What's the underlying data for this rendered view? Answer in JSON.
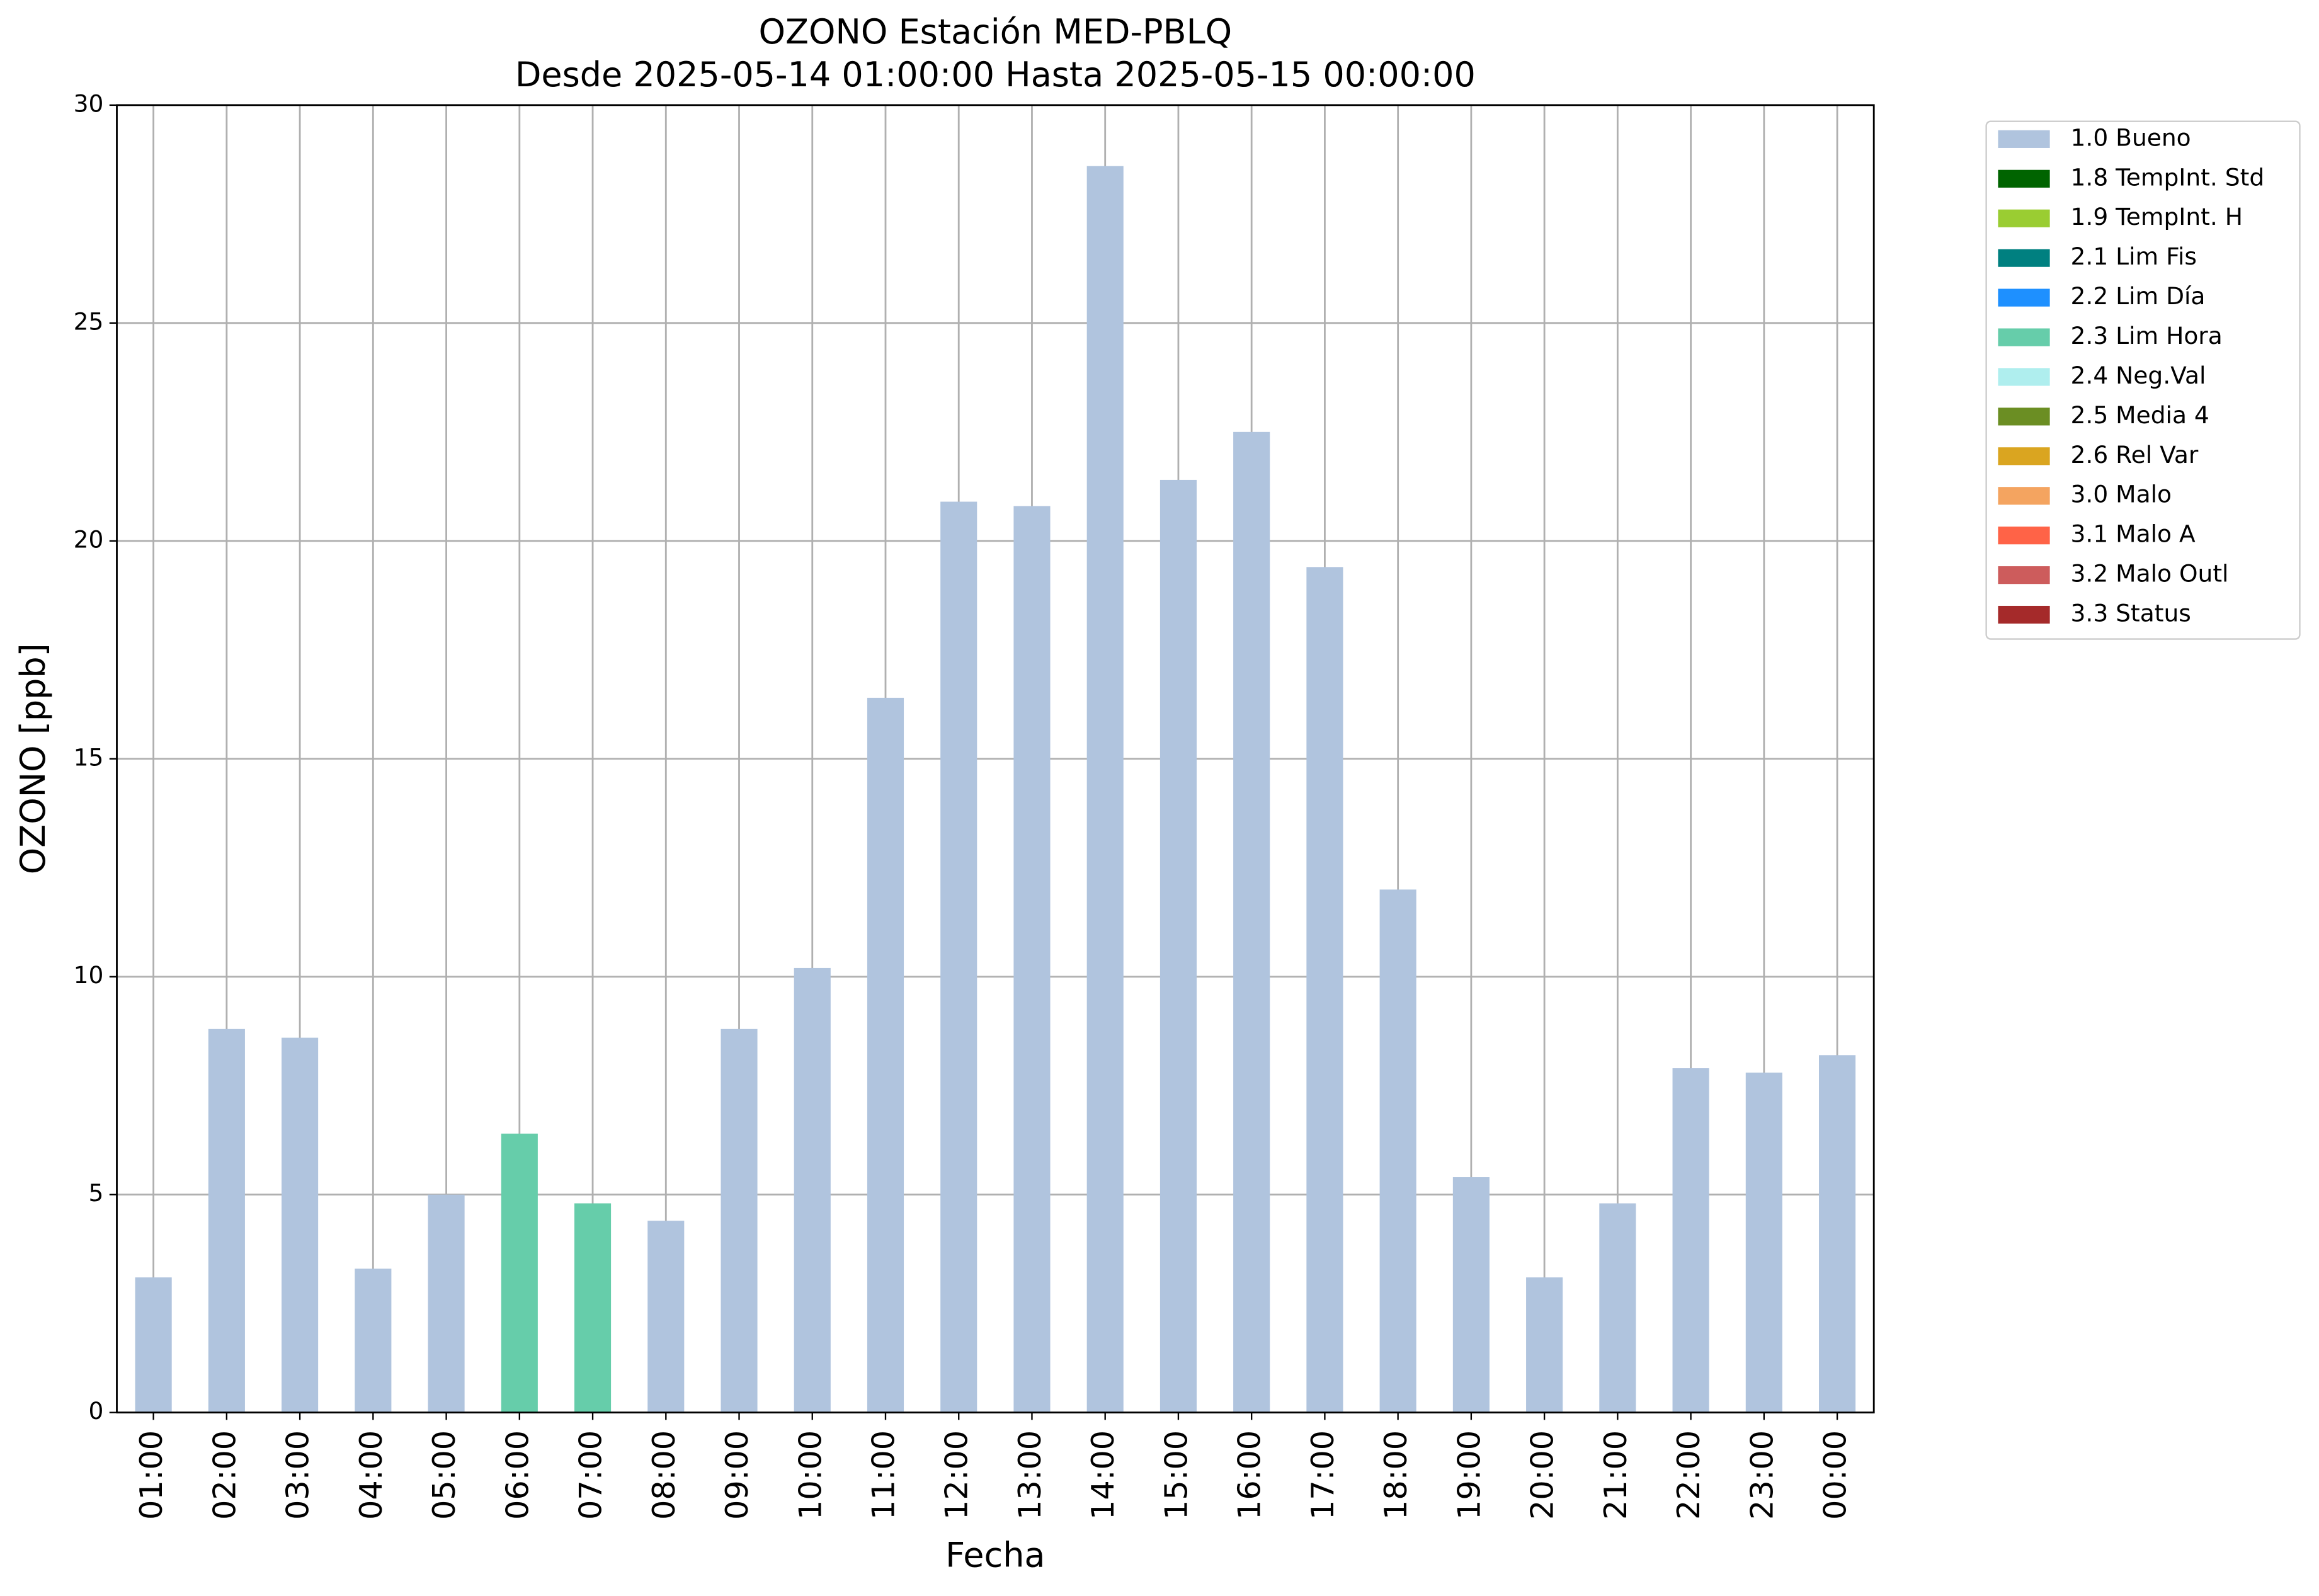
{
  "chart_data": {
    "type": "stacked_bar",
    "title": "OZONO Estación MED-PBLQ",
    "subtitle": "Desde 2025-05-14 01:00:00 Hasta 2025-05-15 00:00:00",
    "x_label": "Fecha",
    "y_label": "OZONO [ppb]",
    "categories": [
      "01:00",
      "02:00",
      "03:00",
      "04:00",
      "05:00",
      "06:00",
      "07:00",
      "08:00",
      "09:00",
      "10:00",
      "11:00",
      "12:00",
      "13:00",
      "14:00",
      "15:00",
      "16:00",
      "17:00",
      "18:00",
      "19:00",
      "20:00",
      "21:00",
      "22:00",
      "23:00",
      "00:00"
    ],
    "series": [
      {
        "name": "1.0 Bueno",
        "color": "#b0c4de",
        "values": [
          3.1,
          8.8,
          8.6,
          3.3,
          5.0,
          null,
          null,
          4.4,
          8.8,
          10.2,
          16.4,
          20.9,
          20.8,
          28.6,
          21.4,
          22.5,
          19.4,
          12.0,
          5.4,
          3.1,
          4.8,
          7.9,
          7.8,
          8.2
        ]
      },
      {
        "name": "1.8 TempInt. Std",
        "color": "#006400",
        "values": [
          null,
          null,
          null,
          null,
          null,
          null,
          null,
          null,
          null,
          null,
          null,
          null,
          null,
          null,
          null,
          null,
          null,
          null,
          null,
          null,
          null,
          null,
          null,
          null
        ]
      },
      {
        "name": "1.9 TempInt. H",
        "color": "#9acd32",
        "values": [
          null,
          null,
          null,
          null,
          null,
          null,
          null,
          null,
          null,
          null,
          null,
          null,
          null,
          null,
          null,
          null,
          null,
          null,
          null,
          null,
          null,
          null,
          null,
          null
        ]
      },
      {
        "name": "2.1 Lim Fis",
        "color": "#008080",
        "values": [
          null,
          null,
          null,
          null,
          null,
          null,
          null,
          null,
          null,
          null,
          null,
          null,
          null,
          null,
          null,
          null,
          null,
          null,
          null,
          null,
          null,
          null,
          null,
          null
        ]
      },
      {
        "name": "2.2 Lim Día",
        "color": "#1e90ff",
        "values": [
          null,
          null,
          null,
          null,
          null,
          null,
          null,
          null,
          null,
          null,
          null,
          null,
          null,
          null,
          null,
          null,
          null,
          null,
          null,
          null,
          null,
          null,
          null,
          null
        ]
      },
      {
        "name": "2.3 Lim Hora",
        "color": "#66cdaa",
        "values": [
          null,
          null,
          null,
          null,
          null,
          6.4,
          4.8,
          null,
          null,
          null,
          null,
          null,
          null,
          null,
          null,
          null,
          null,
          null,
          null,
          null,
          null,
          null,
          null,
          null
        ]
      },
      {
        "name": "2.4 Neg.Val",
        "color": "#afeeee",
        "values": [
          null,
          null,
          null,
          null,
          null,
          null,
          null,
          null,
          null,
          null,
          null,
          null,
          null,
          null,
          null,
          null,
          null,
          null,
          null,
          null,
          null,
          null,
          null,
          null
        ]
      },
      {
        "name": "2.5 Media 4",
        "color": "#6b8e23",
        "values": [
          null,
          null,
          null,
          null,
          null,
          null,
          null,
          null,
          null,
          null,
          null,
          null,
          null,
          null,
          null,
          null,
          null,
          null,
          null,
          null,
          null,
          null,
          null,
          null
        ]
      },
      {
        "name": "2.6 Rel Var",
        "color": "#daa520",
        "values": [
          null,
          null,
          null,
          null,
          null,
          null,
          null,
          null,
          null,
          null,
          null,
          null,
          null,
          null,
          null,
          null,
          null,
          null,
          null,
          null,
          null,
          null,
          null,
          null
        ]
      },
      {
        "name": "3.0 Malo",
        "color": "#f4a460",
        "values": [
          null,
          null,
          null,
          null,
          null,
          null,
          null,
          null,
          null,
          null,
          null,
          null,
          null,
          null,
          null,
          null,
          null,
          null,
          null,
          null,
          null,
          null,
          null,
          null
        ]
      },
      {
        "name": "3.1 Malo A",
        "color": "#ff6347",
        "values": [
          null,
          null,
          null,
          null,
          null,
          null,
          null,
          null,
          null,
          null,
          null,
          null,
          null,
          null,
          null,
          null,
          null,
          null,
          null,
          null,
          null,
          null,
          null,
          null
        ]
      },
      {
        "name": "3.2 Malo Outl",
        "color": "#cd5c5c",
        "values": [
          null,
          null,
          null,
          null,
          null,
          null,
          null,
          null,
          null,
          null,
          null,
          null,
          null,
          null,
          null,
          null,
          null,
          null,
          null,
          null,
          null,
          null,
          null,
          null
        ]
      },
      {
        "name": "3.3 Status",
        "color": "#a52a2a",
        "values": [
          null,
          null,
          null,
          null,
          null,
          null,
          null,
          null,
          null,
          null,
          null,
          null,
          null,
          null,
          null,
          null,
          null,
          null,
          null,
          null,
          null,
          null,
          null,
          null
        ]
      }
    ],
    "ylim": [
      0,
      30
    ],
    "yticks": [
      0,
      5,
      10,
      15,
      20,
      25,
      30
    ],
    "grid": true,
    "legend": "outside-right"
  }
}
